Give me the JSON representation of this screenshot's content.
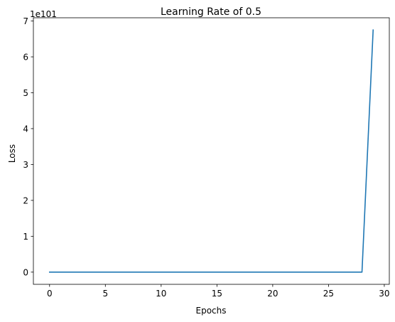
{
  "chart_data": {
    "type": "line",
    "title": "Learning Rate of 0.5",
    "xlabel": "Epochs",
    "ylabel": "Loss",
    "y_offset_text": "1e101",
    "y_scale_exponent": 101,
    "xlim": [
      -1.45,
      30.45
    ],
    "ylim": [
      -0.34,
      7.09
    ],
    "x_ticks": [
      0,
      5,
      10,
      15,
      20,
      25,
      30
    ],
    "y_ticks": [
      0,
      1,
      2,
      3,
      4,
      5,
      6,
      7
    ],
    "grid": false,
    "legend": "none",
    "series": [
      {
        "color": "#1f77b4",
        "x": [
          0,
          1,
          2,
          3,
          4,
          5,
          6,
          7,
          8,
          9,
          10,
          11,
          12,
          13,
          14,
          15,
          16,
          17,
          18,
          19,
          20,
          21,
          22,
          23,
          24,
          25,
          26,
          27,
          28,
          29
        ],
        "y": [
          0,
          0,
          0,
          0,
          0,
          0,
          0,
          0,
          0,
          0,
          0,
          0,
          0,
          0,
          0,
          0,
          0,
          0,
          0,
          0,
          0,
          0,
          0,
          0,
          0,
          0,
          0,
          0,
          0,
          6.75
        ]
      }
    ]
  }
}
